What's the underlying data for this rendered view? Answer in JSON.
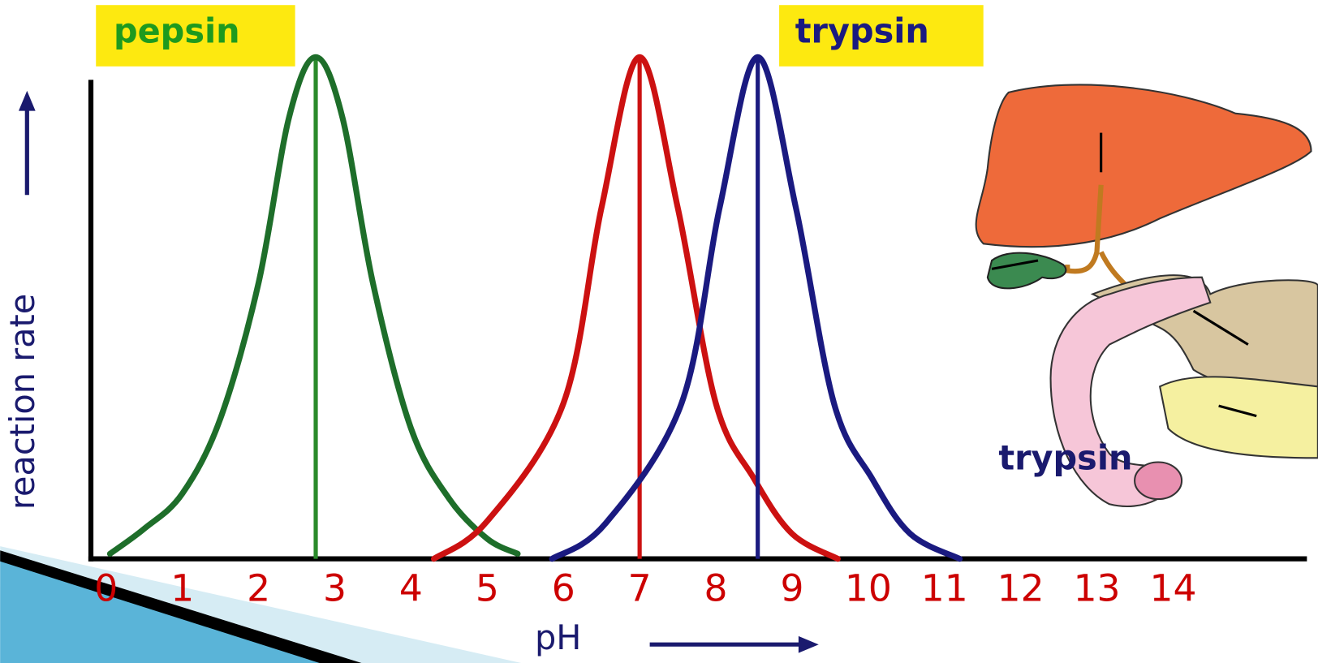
{
  "chart_data": {
    "type": "line",
    "x_label": "pH",
    "y_label": "reaction rate",
    "xlim": [
      -0.2,
      15.8
    ],
    "ylim": [
      0,
      100
    ],
    "xticks": [
      0,
      1,
      2,
      3,
      4,
      5,
      6,
      7,
      8,
      9,
      10,
      11,
      12,
      13,
      14
    ],
    "tick_color": "#cc0000",
    "series": [
      {
        "name": "pepsin",
        "color": "#1e6e2a",
        "line_color": "#2a8a2a",
        "label_color": "#1e9a1e",
        "x": [
          0.05,
          0.5,
          1,
          1.5,
          2,
          2.4,
          2.75,
          3.1,
          3.5,
          4,
          4.5,
          5,
          5.4
        ],
        "values": [
          1,
          6,
          13,
          28,
          55,
          88,
          100,
          88,
          55,
          26,
          12,
          4,
          1
        ]
      },
      {
        "color": "#cc1111",
        "x": [
          4.3,
          5,
          6,
          6.5,
          7,
          7.5,
          8,
          8.5,
          9,
          9.6
        ],
        "values": [
          0,
          7.5,
          31,
          70,
          100,
          70,
          31,
          16,
          5,
          0
        ]
      },
      {
        "name": "trypsin",
        "color": "#1a1a80",
        "line_color": "#1a1a80",
        "label_color": "#1a1a80",
        "x": [
          5.85,
          6.55,
          7.55,
          8.05,
          8.55,
          9.05,
          9.55,
          10.05,
          10.55,
          11.2
        ],
        "values": [
          0,
          7,
          31,
          70,
          100,
          70,
          31,
          16,
          5,
          0
        ]
      }
    ],
    "annotations": [
      "trypsin"
    ]
  }
}
